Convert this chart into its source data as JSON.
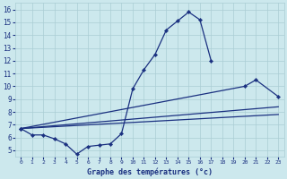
{
  "background_color": "#cce8ed",
  "grid_color": "#aacdd4",
  "line_color": "#1a3080",
  "xlabel": "Graphe des températures (°c)",
  "xlim": [
    -0.5,
    23.5
  ],
  "ylim": [
    4.5,
    16.5
  ],
  "yticks": [
    5,
    6,
    7,
    8,
    9,
    10,
    11,
    12,
    13,
    14,
    15,
    16
  ],
  "xticks": [
    0,
    1,
    2,
    3,
    4,
    5,
    6,
    7,
    8,
    9,
    10,
    11,
    12,
    13,
    14,
    15,
    16,
    17,
    18,
    19,
    20,
    21,
    22,
    23
  ],
  "series": [
    {
      "x": [
        0,
        1,
        2,
        3,
        4,
        5,
        6,
        7,
        8,
        9,
        10,
        11,
        12,
        13,
        14,
        15,
        16,
        17
      ],
      "y": [
        6.7,
        6.2,
        6.2,
        5.9,
        5.5,
        4.7,
        5.3,
        5.4,
        5.5,
        6.3,
        9.8,
        11.3,
        12.5,
        14.4,
        15.1,
        15.8,
        15.2,
        12.0
      ],
      "marker": true
    },
    {
      "x": [
        0,
        20,
        21,
        23
      ],
      "y": [
        6.7,
        10.0,
        10.5,
        9.2
      ],
      "marker": true
    },
    {
      "x": [
        0,
        23
      ],
      "y": [
        6.7,
        8.4
      ],
      "marker": false
    },
    {
      "x": [
        0,
        23
      ],
      "y": [
        6.7,
        7.8
      ],
      "marker": false
    }
  ]
}
